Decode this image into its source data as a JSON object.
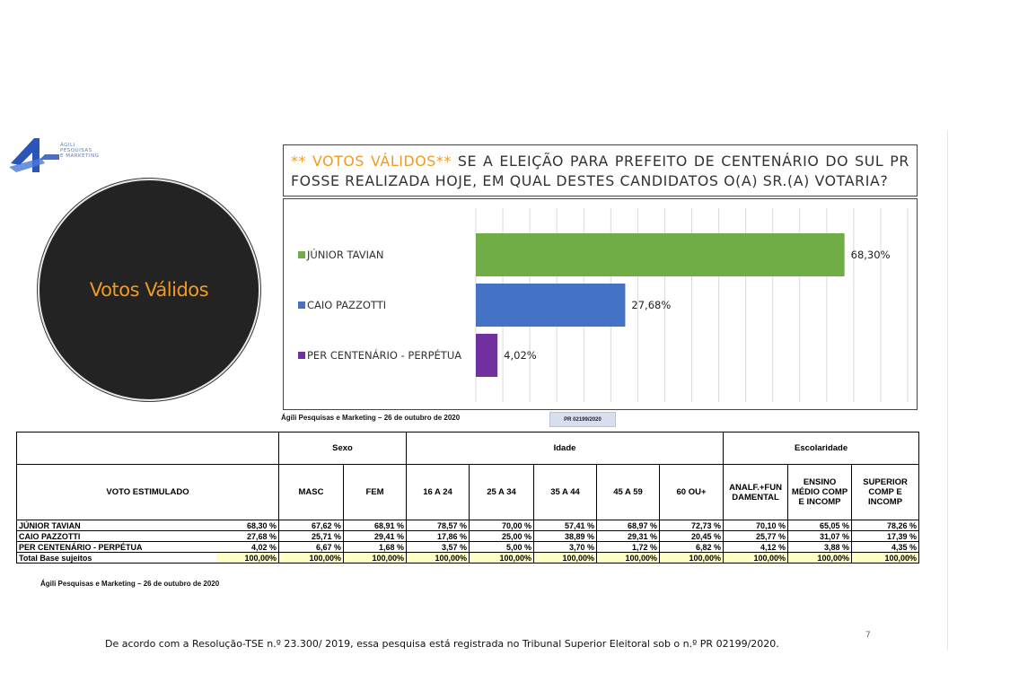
{
  "logo": {
    "text": "ÁGILI\nPESQUISAS\nE MARKETING",
    "color": "#2b56b8"
  },
  "circle_label": "Votos Válidos",
  "question": {
    "highlight": "** VOTOS VÁLIDOS**",
    "text": " SE A ELEIÇÃO PARA PREFEITO DE CENTENÁRIO DO SUL PR FOSSE REALIZADA HOJE, EM QUAL DESTES CANDIDATOS O(A) SR.(A) VOTARIA?"
  },
  "chart_data": {
    "type": "bar",
    "orientation": "horizontal",
    "categories": [
      "JÚNIOR TAVIAN",
      "CAIO PAZZOTTI",
      "PER CENTENÁRIO - PERPÉTUA"
    ],
    "values": [
      68.3,
      27.68,
      4.02
    ],
    "value_labels": [
      "68,30%",
      "27,68%",
      "4,02%"
    ],
    "colors": [
      "#70ad47",
      "#4472c4",
      "#7030a0"
    ],
    "xlim": [
      0,
      80
    ],
    "grid": true,
    "legend": "left"
  },
  "source_text": "Ágili Pesquisas e Marketing – 26 de outubro de 2020",
  "registration_badge": "PR 02199/2020",
  "table": {
    "groups": [
      "Sexo",
      "Idade",
      "Escolaridade"
    ],
    "row_header": "VOTO ESTIMULADO",
    "columns": [
      "MASC",
      "FEM",
      "16 A 24",
      "25 A 34",
      "35 A 44",
      "45 A 59",
      "60 OU+",
      "ANALF.+FUN DAMENTAL",
      "ENSINO MÉDIO COMP E INCOMP",
      "SUPERIOR COMP E INCOMP"
    ],
    "rows": [
      {
        "name": "JÚNIOR TAVIAN",
        "total": "68,30 %",
        "values": [
          "67,62 %",
          "68,91 %",
          "78,57 %",
          "70,00 %",
          "57,41 %",
          "68,97 %",
          "72,73 %",
          "70,10 %",
          "65,05 %",
          "78,26 %"
        ]
      },
      {
        "name": "CAIO PAZZOTTI",
        "total": "27,68 %",
        "values": [
          "25,71 %",
          "29,41 %",
          "17,86 %",
          "25,00 %",
          "38,89 %",
          "29,31 %",
          "20,45 %",
          "25,77 %",
          "31,07 %",
          "17,39 %"
        ]
      },
      {
        "name": "PER CENTENÁRIO - PERPÉTUA",
        "total": "4,02 %",
        "values": [
          "6,67 %",
          "1,68 %",
          "3,57 %",
          "5,00 %",
          "3,70 %",
          "1,72 %",
          "6,82 %",
          "4,12 %",
          "3,88 %",
          "4,35 %"
        ]
      },
      {
        "name": "Total Base sujeitos",
        "total": "100,00%",
        "values": [
          "100,00%",
          "100,00%",
          "100,00%",
          "100,00%",
          "100,00%",
          "100,00%",
          "100,00%",
          "100,00%",
          "100,00%",
          "100,00%"
        ]
      }
    ]
  },
  "footer": "De acordo com a Resolução-TSE n.º 23.300/ 2019, essa pesquisa está registrada no Tribunal Superior Eleitoral sob o n.º PR 02199/2020.",
  "page_number": "7"
}
